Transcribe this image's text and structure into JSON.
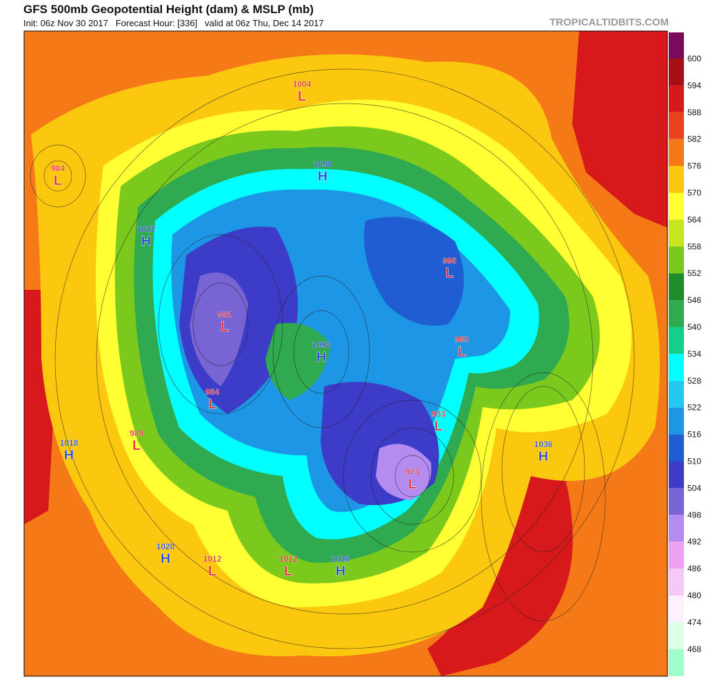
{
  "header": {
    "title": "GFS 500mb Geopotential Height (dam) & MSLP (mb)",
    "subtitle": "Init: 06z Nov 30 2017   Forecast Hour: [336]   valid at 06z Thu, Dec 14 2017",
    "watermark": "TROPICALTIDBITS.COM"
  },
  "colorbar": {
    "labels": [
      600,
      594,
      588,
      582,
      576,
      570,
      564,
      558,
      552,
      546,
      540,
      534,
      528,
      522,
      516,
      510,
      504,
      498,
      492,
      486,
      480,
      474,
      468
    ],
    "colors": [
      "#7a0b5a",
      "#a50f15",
      "#d7191c",
      "#e8431c",
      "#f57a17",
      "#fcc70f",
      "#ffff33",
      "#c8e61e",
      "#7cc91e",
      "#1e8c2a",
      "#2faa50",
      "#12d08a",
      "#00ffff",
      "#22c8f0",
      "#1e96e6",
      "#1f5ed2",
      "#3c3cc8",
      "#7864d2",
      "#b48cf0",
      "#f0a0f0",
      "#f5c8f5",
      "#fff0ff",
      "#dcffe6",
      "#a0ffc8"
    ]
  },
  "centers": [
    {
      "type": "L",
      "pressure": 984
    },
    {
      "type": "H",
      "pressure": 1022
    },
    {
      "type": "H",
      "pressure": 1018
    },
    {
      "type": "L",
      "pressure": 989
    },
    {
      "type": "H",
      "pressure": 1020
    },
    {
      "type": "L",
      "pressure": 1012
    },
    {
      "type": "L",
      "pressure": 1012
    },
    {
      "type": "H",
      "pressure": 1026
    },
    {
      "type": "L",
      "pressure": 984
    },
    {
      "type": "L",
      "pressure": 981
    },
    {
      "type": "H",
      "pressure": 1058
    },
    {
      "type": "H",
      "pressure": 1050
    },
    {
      "type": "L",
      "pressure": 1004
    },
    {
      "type": "L",
      "pressure": 996
    },
    {
      "type": "L",
      "pressure": 985
    },
    {
      "type": "L",
      "pressure": 983
    },
    {
      "type": "L",
      "pressure": 973
    },
    {
      "type": "H",
      "pressure": 1036
    }
  ]
}
